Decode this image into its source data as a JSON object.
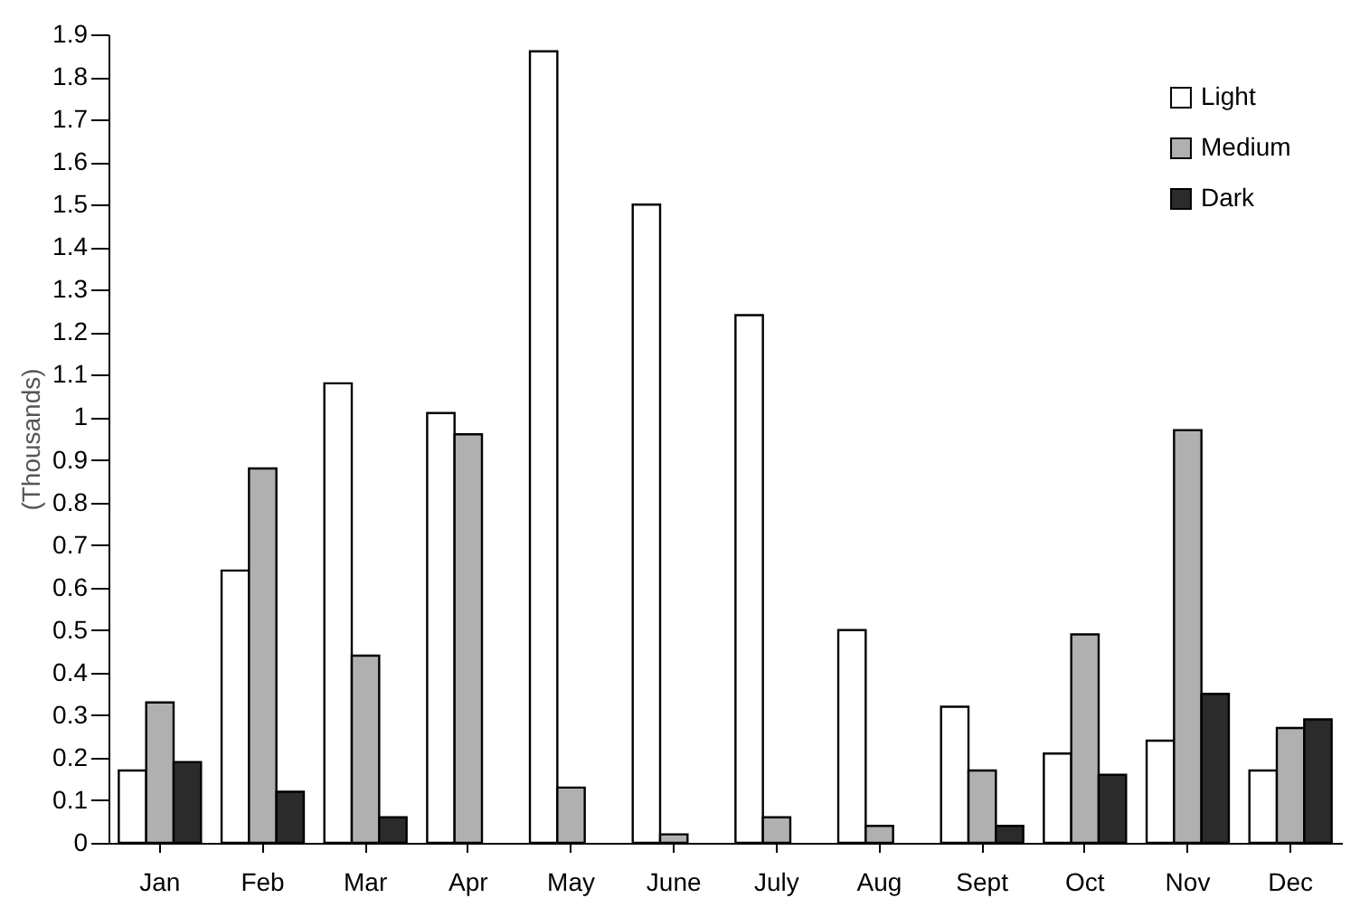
{
  "chart_data": {
    "type": "bar",
    "ylabel": "(Thousands)",
    "categories": [
      "Jan",
      "Feb",
      "Mar",
      "Apr",
      "May",
      "June",
      "July",
      "Aug",
      "Sept",
      "Oct",
      "Nov",
      "Dec"
    ],
    "series": [
      {
        "name": "Light",
        "color": "#ffffff",
        "values": [
          0.17,
          0.64,
          1.08,
          1.01,
          1.86,
          1.5,
          1.24,
          0.5,
          0.32,
          0.21,
          0.24,
          0.17
        ]
      },
      {
        "name": "Medium",
        "color": "#b0b0b0",
        "values": [
          0.33,
          0.88,
          0.44,
          0.96,
          0.13,
          0.02,
          0.06,
          0.04,
          0.17,
          0.49,
          0.97,
          0.27
        ]
      },
      {
        "name": "Dark",
        "color": "#2b2b2b",
        "values": [
          0.19,
          0.12,
          0.06,
          null,
          null,
          null,
          null,
          null,
          0.04,
          0.16,
          0.35,
          0.29
        ]
      }
    ],
    "ylim": [
      0,
      1.9
    ],
    "yticks": [
      0,
      0.1,
      0.2,
      0.3,
      0.4,
      0.5,
      0.6,
      0.7,
      0.8,
      0.9,
      1,
      1.1,
      1.2,
      1.3,
      1.4,
      1.5,
      1.6,
      1.7,
      1.8,
      1.9
    ],
    "grid": false,
    "legend": "top right"
  }
}
